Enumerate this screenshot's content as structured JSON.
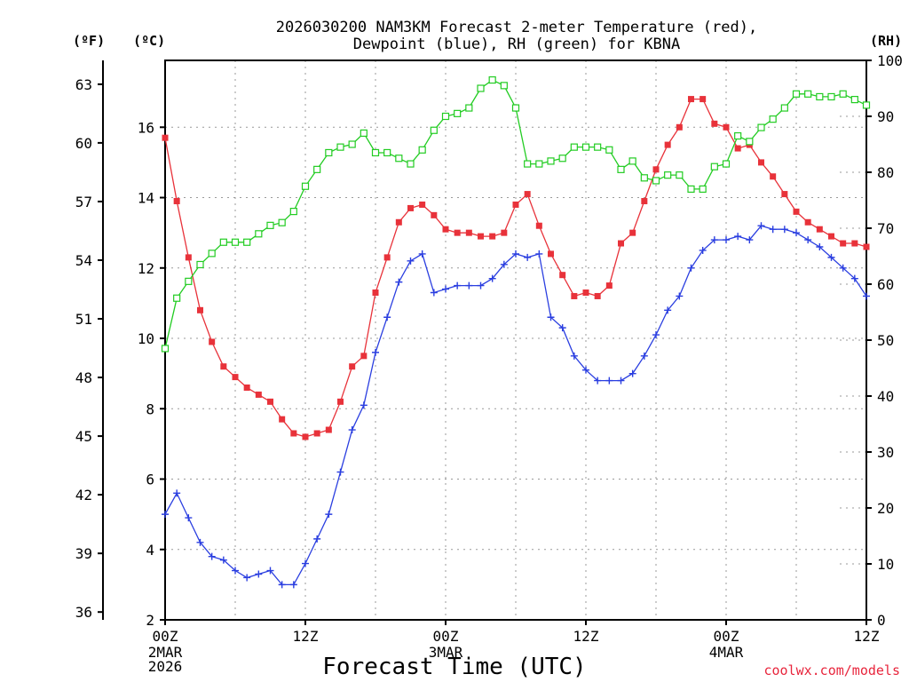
{
  "chart_data": {
    "type": "line",
    "title_lines": [
      "2026030200 NAM3KM Forecast 2-meter Temperature (red),",
      "Dewpoint (blue), RH (green) for KBNA"
    ],
    "units": {
      "fahrenheit": "(ºF)",
      "celsius": "(ºC)",
      "rh": "(RH)"
    },
    "xlabel": "Forecast Time (UTC)",
    "credit": "coolwx.com/models",
    "x_range_hours": [
      0,
      60
    ],
    "x_ticks": [
      {
        "hour": 0,
        "label": "00Z",
        "sub": [
          "2MAR",
          "2026"
        ]
      },
      {
        "hour": 12,
        "label": "12Z",
        "sub": []
      },
      {
        "hour": 24,
        "label": "00Z",
        "sub": [
          "3MAR"
        ]
      },
      {
        "hour": 36,
        "label": "12Z",
        "sub": []
      },
      {
        "hour": 48,
        "label": "00Z",
        "sub": [
          "4MAR"
        ]
      },
      {
        "hour": 60,
        "label": "12Z",
        "sub": []
      }
    ],
    "x_grid_hours": [
      6,
      12,
      18,
      24,
      30,
      36,
      42,
      48,
      54
    ],
    "celsius_axis": {
      "range": [
        2,
        17.9
      ],
      "ticks": [
        2,
        4,
        6,
        8,
        10,
        12,
        14,
        16
      ]
    },
    "fahrenheit_ticks": [
      36,
      39,
      42,
      45,
      48,
      51,
      54,
      57,
      60,
      63
    ],
    "rh_axis": {
      "range": [
        0,
        100
      ],
      "ticks": [
        0,
        10,
        20,
        30,
        40,
        50,
        60,
        70,
        80,
        90,
        100
      ]
    },
    "series": [
      {
        "name": "2-meter Temperature",
        "color": "#e8323a",
        "marker": "filled-square",
        "axis": "celsius",
        "values": [
          15.7,
          13.9,
          12.3,
          10.8,
          9.9,
          9.2,
          8.9,
          8.6,
          8.4,
          8.2,
          7.7,
          7.3,
          7.2,
          7.3,
          7.4,
          8.2,
          9.2,
          9.5,
          11.3,
          12.3,
          13.3,
          13.7,
          13.8,
          13.5,
          13.1,
          13.0,
          13.0,
          12.9,
          12.9,
          13.0,
          13.8,
          14.1,
          13.2,
          12.4,
          11.8,
          11.2,
          11.3,
          11.2,
          11.5,
          12.7,
          13.0,
          13.9,
          14.8,
          15.5,
          16.0,
          16.8,
          16.8,
          16.1,
          16.0,
          15.4,
          15.5,
          15.0,
          14.6,
          14.1,
          13.6,
          13.3,
          13.1,
          12.9,
          12.7,
          12.7,
          12.6
        ]
      },
      {
        "name": "Dewpoint",
        "color": "#2a3ee0",
        "marker": "plus",
        "axis": "celsius",
        "values": [
          5.0,
          5.6,
          4.9,
          4.2,
          3.8,
          3.7,
          3.4,
          3.2,
          3.3,
          3.4,
          3.0,
          3.0,
          3.6,
          4.3,
          5.0,
          6.2,
          7.4,
          8.1,
          9.6,
          10.6,
          11.6,
          12.2,
          12.4,
          11.3,
          11.4,
          11.5,
          11.5,
          11.5,
          11.7,
          12.1,
          12.4,
          12.3,
          12.4,
          10.6,
          10.3,
          9.5,
          9.1,
          8.8,
          8.8,
          8.8,
          9.0,
          9.5,
          10.1,
          10.8,
          11.2,
          12.0,
          12.5,
          12.8,
          12.8,
          12.9,
          12.8,
          13.2,
          13.1,
          13.1,
          13.0,
          12.8,
          12.6,
          12.3,
          12.0,
          11.7,
          11.2
        ]
      },
      {
        "name": "RH",
        "color": "#22cc22",
        "marker": "open-square",
        "axis": "rh",
        "values": [
          48.5,
          57.5,
          60.5,
          63.5,
          65.5,
          67.5,
          67.5,
          67.5,
          69,
          70.5,
          71,
          73,
          77.5,
          80.5,
          83.5,
          84.5,
          85,
          87,
          83.5,
          83.5,
          82.5,
          81.5,
          84,
          87.5,
          90,
          90.5,
          91.5,
          95,
          96.5,
          95.5,
          91.5,
          81.5,
          81.5,
          82,
          82.5,
          84.5,
          84.5,
          84.5,
          84,
          80.5,
          82,
          79,
          78.5,
          79.5,
          79.5,
          77,
          77,
          81,
          81.5,
          86.5,
          85.5,
          88,
          89.5,
          91.5,
          94,
          94,
          93.5,
          93.5,
          94,
          93,
          92
        ]
      }
    ]
  }
}
